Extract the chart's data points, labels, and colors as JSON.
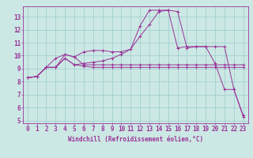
{
  "bg_color": "#cce8e4",
  "line_color": "#993399",
  "grid_color": "#99cccc",
  "xlabel": "Windchill (Refroidissement éolien,°C)",
  "xlim": [
    -0.5,
    23.5
  ],
  "ylim": [
    4.8,
    13.8
  ],
  "yticks": [
    5,
    6,
    7,
    8,
    9,
    10,
    11,
    12,
    13
  ],
  "xticks": [
    0,
    1,
    2,
    3,
    4,
    5,
    6,
    7,
    8,
    9,
    10,
    11,
    12,
    13,
    14,
    15,
    16,
    17,
    18,
    19,
    20,
    21,
    22,
    23
  ],
  "lines": [
    {
      "x": [
        0,
        1,
        2,
        3,
        4,
        5,
        6,
        7,
        8,
        9,
        10,
        11,
        12,
        13,
        14,
        15,
        16,
        17,
        18,
        19,
        20,
        21,
        22,
        23
      ],
      "y": [
        8.3,
        8.4,
        9.1,
        9.1,
        9.8,
        9.3,
        9.4,
        9.5,
        9.6,
        9.8,
        10.1,
        10.5,
        11.5,
        12.4,
        13.4,
        13.5,
        13.4,
        10.6,
        10.7,
        10.7,
        9.4,
        7.4,
        7.4,
        5.3
      ]
    },
    {
      "x": [
        0,
        1,
        2,
        3,
        4,
        5,
        6,
        7,
        8,
        9,
        10,
        11,
        12,
        13,
        14,
        15,
        16,
        17,
        18,
        19,
        20,
        21,
        22,
        23
      ],
      "y": [
        8.3,
        8.4,
        9.1,
        9.1,
        10.1,
        9.9,
        10.3,
        10.4,
        10.4,
        10.3,
        10.3,
        10.5,
        12.3,
        13.5,
        13.5,
        13.5,
        10.6,
        10.7,
        10.7,
        10.7,
        10.7,
        10.7,
        7.4,
        5.4
      ]
    },
    {
      "x": [
        0,
        1,
        2,
        3,
        4,
        5,
        6,
        7,
        8,
        9,
        10,
        11,
        12,
        13,
        14,
        15,
        16,
        17,
        18,
        19,
        20,
        21,
        22,
        23
      ],
      "y": [
        8.3,
        8.4,
        9.1,
        9.8,
        10.1,
        9.9,
        9.3,
        9.3,
        9.3,
        9.3,
        9.3,
        9.3,
        9.3,
        9.3,
        9.3,
        9.3,
        9.3,
        9.3,
        9.3,
        9.3,
        9.3,
        9.3,
        9.3,
        9.3
      ]
    },
    {
      "x": [
        0,
        1,
        2,
        3,
        4,
        5,
        6,
        7,
        8,
        9,
        10,
        11,
        12,
        13,
        14,
        15,
        16,
        17,
        18,
        19,
        20,
        21,
        22,
        23
      ],
      "y": [
        8.3,
        8.4,
        9.1,
        9.1,
        9.8,
        9.3,
        9.2,
        9.1,
        9.1,
        9.1,
        9.1,
        9.1,
        9.1,
        9.1,
        9.1,
        9.1,
        9.1,
        9.1,
        9.1,
        9.1,
        9.1,
        9.1,
        9.1,
        9.1
      ]
    }
  ],
  "title_fontsize": 6,
  "tick_fontsize": 5.5
}
